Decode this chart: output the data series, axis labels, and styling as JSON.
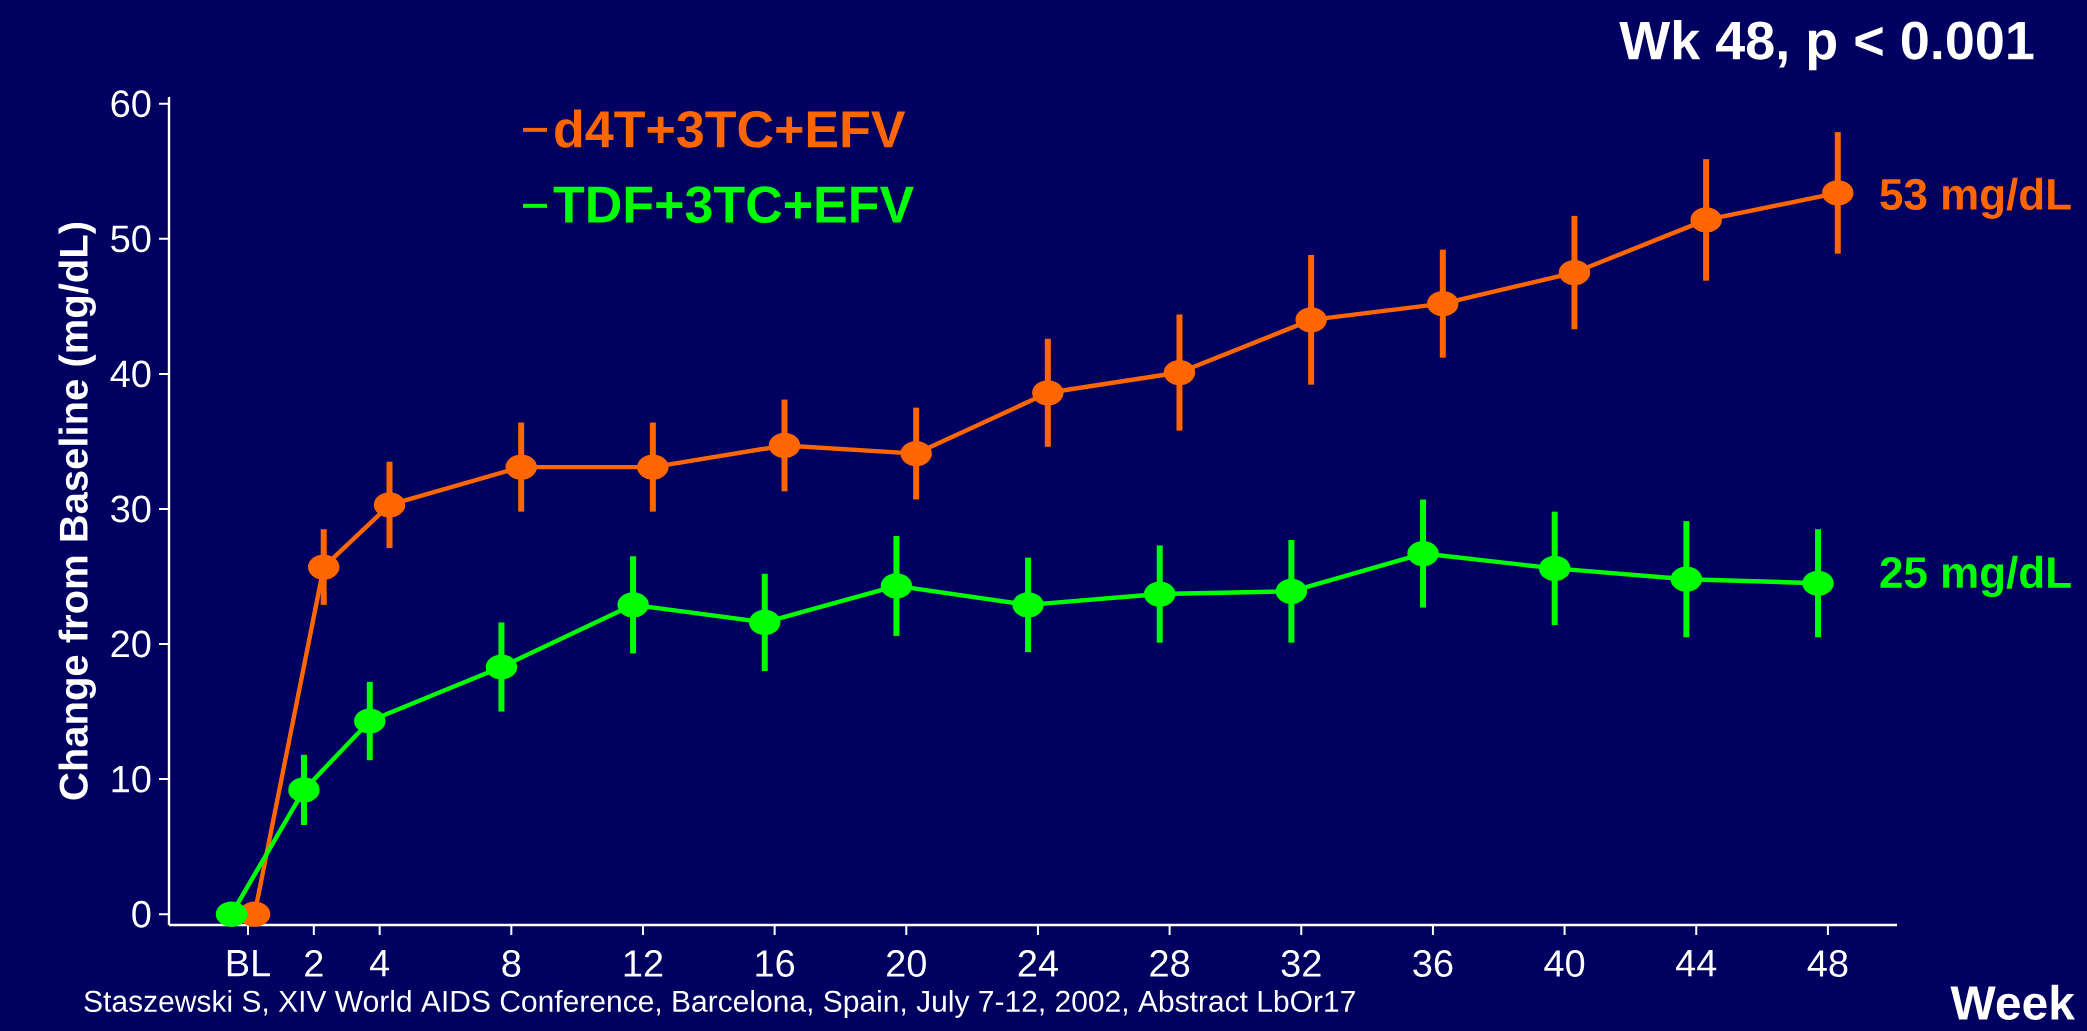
{
  "chart_data": {
    "type": "line",
    "title": "Wk 48, p < 0.001",
    "xlabel": "Week",
    "ylabel": "Change from Baseline (mg/dL)",
    "xlim": [
      -2.4,
      50.1
    ],
    "ylim": [
      -0.8,
      60.5
    ],
    "xticks": [
      {
        "value": 0,
        "label": "BL"
      },
      2,
      4,
      8,
      12,
      16,
      20,
      24,
      28,
      32,
      36,
      40,
      44,
      48
    ],
    "yticks": [
      0,
      10,
      20,
      30,
      40,
      50,
      60
    ],
    "series": [
      {
        "name": "d4T+3TC+EFV",
        "color": "#ff6600",
        "x": [
          0.2,
          2.3,
          4.3,
          8.3,
          12.3,
          16.3,
          20.3,
          24.3,
          28.3,
          32.3,
          36.3,
          40.3,
          44.3,
          48.3
        ],
        "values": [
          0,
          25.7,
          30.3,
          33.1,
          33.1,
          34.7,
          34.1,
          38.6,
          40.1,
          44.0,
          45.2,
          47.5,
          51.4,
          53.4
        ],
        "errors": [
          null,
          2.8,
          3.2,
          3.3,
          3.3,
          3.4,
          3.4,
          4.0,
          4.3,
          4.8,
          4.0,
          4.2,
          4.5,
          4.5
        ]
      },
      {
        "name": "TDF+3TC+EFV",
        "color": "#00ff00",
        "x": [
          -0.5,
          1.7,
          3.7,
          7.7,
          11.7,
          15.7,
          19.7,
          23.7,
          27.7,
          31.7,
          35.7,
          39.7,
          43.7,
          47.7
        ],
        "values": [
          0,
          9.2,
          14.3,
          18.3,
          22.9,
          21.6,
          24.3,
          22.9,
          23.7,
          23.9,
          26.7,
          25.6,
          24.8,
          24.5
        ],
        "errors": [
          null,
          2.6,
          2.9,
          3.3,
          3.6,
          3.6,
          3.7,
          3.5,
          3.6,
          3.8,
          4.0,
          4.2,
          4.3,
          4.0
        ]
      }
    ],
    "annotations": [
      {
        "text": "53 mg/dL",
        "x": 48,
        "y": 53
      },
      {
        "text": "25 mg/dL",
        "x": 48,
        "y": 25
      },
      "Staszewski S, XIV World AIDS Conference, Barcelona, Spain, July 7-12, 2002, Abstract LbOr17"
    ],
    "legend": "top left",
    "marker": "circle",
    "line_style": "solid"
  }
}
